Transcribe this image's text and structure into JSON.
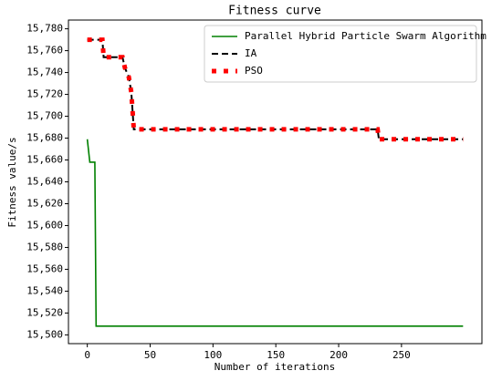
{
  "chart_data": {
    "type": "line",
    "title": "Fitness curve",
    "x_label": "Number of iterations",
    "y_label": "Fitness value/s",
    "x": [
      0,
      2,
      6,
      7,
      12,
      13,
      28,
      30,
      33,
      35,
      37,
      38,
      231,
      232,
      299
    ],
    "series": [
      {
        "name": "Parallel Hybrid Particle Swarm Algorithm",
        "color": "#008000",
        "style": "solid",
        "values": [
          15679,
          15658,
          15658,
          15508,
          15508,
          15508,
          15508,
          15508,
          15508,
          15508,
          15508,
          15508,
          15508,
          15508,
          15508
        ]
      },
      {
        "name": "IA",
        "color": "#000000",
        "style": "dashed",
        "values": [
          15770,
          15770,
          15770,
          15770,
          15770,
          15754,
          15754,
          15744,
          15736,
          15722,
          15688,
          15688,
          15688,
          15679,
          15679
        ]
      },
      {
        "name": "PSO",
        "color": "#ff0000",
        "style": "dotted",
        "values": [
          15770,
          15770,
          15770,
          15770,
          15770,
          15754,
          15754,
          15744,
          15736,
          15722,
          15688,
          15688,
          15688,
          15679,
          15679
        ]
      }
    ],
    "xlim": [
      -15,
      314
    ],
    "ylim": [
      15492,
      15788
    ],
    "xticks": [
      0,
      50,
      100,
      150,
      200,
      250
    ],
    "yticks": [
      {
        "value": 15500,
        "label": "15,500"
      },
      {
        "value": 15520,
        "label": "15,520"
      },
      {
        "value": 15540,
        "label": "15,540"
      },
      {
        "value": 15560,
        "label": "15,560"
      },
      {
        "value": 15580,
        "label": "15,580"
      },
      {
        "value": 15600,
        "label": "15,600"
      },
      {
        "value": 15620,
        "label": "15,620"
      },
      {
        "value": 15640,
        "label": "15,640"
      },
      {
        "value": 15660,
        "label": "15,660"
      },
      {
        "value": 15680,
        "label": "15,680"
      },
      {
        "value": 15700,
        "label": "15,700"
      },
      {
        "value": 15720,
        "label": "15,720"
      },
      {
        "value": 15740,
        "label": "15,740"
      },
      {
        "value": 15760,
        "label": "15,760"
      },
      {
        "value": 15780,
        "label": "15,780"
      }
    ],
    "legend": "upper right",
    "grid": false
  }
}
